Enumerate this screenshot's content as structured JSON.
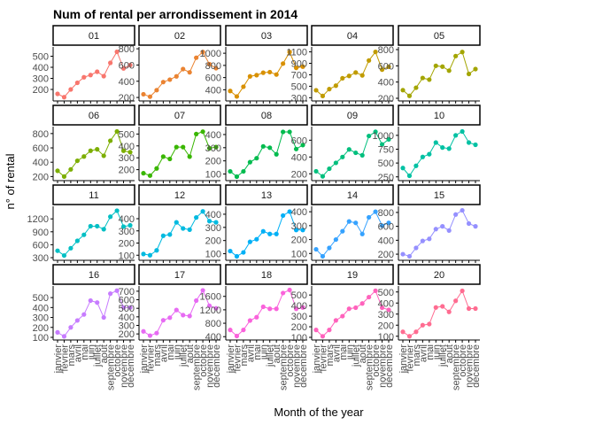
{
  "chart_data": {
    "type": "line",
    "title": "Num of rental per arrondissement in 2014",
    "xlabel": "Month of the year",
    "ylabel": "n° of rental",
    "categories": [
      "janvier",
      "février",
      "mars",
      "avril",
      "mai",
      "juin",
      "juillet",
      "août",
      "septembre",
      "octobre",
      "novembre",
      "décembre"
    ],
    "facets": [
      {
        "name": "01",
        "color": "#F8766D",
        "values": [
          160,
          130,
          200,
          260,
          310,
          330,
          360,
          320,
          440,
          540,
          390,
          420
        ],
        "ylim": [
          120,
          560
        ],
        "yticks": [
          200,
          300,
          400,
          500
        ]
      },
      {
        "name": "02",
        "color": "#EA8331",
        "values": [
          240,
          210,
          290,
          390,
          420,
          460,
          550,
          510,
          690,
          760,
          610,
          560
        ],
        "ylim": [
          190,
          790
        ],
        "yticks": [
          200,
          400,
          600,
          800
        ]
      },
      {
        "name": "03",
        "color": "#D89000",
        "values": [
          380,
          290,
          450,
          620,
          640,
          680,
          690,
          650,
          830,
          1020,
          760,
          780
        ],
        "ylim": [
          260,
          1060
        ],
        "yticks": [
          200,
          400,
          600,
          800,
          1000
        ]
      },
      {
        "name": "04",
        "color": "#C09B00",
        "values": [
          430,
          330,
          450,
          510,
          640,
          680,
          740,
          690,
          950,
          1100,
          790,
          840
        ],
        "ylim": [
          290,
          1140
        ],
        "yticks": [
          300,
          500,
          700,
          900,
          1100
        ]
      },
      {
        "name": "05",
        "color": "#A3A500",
        "values": [
          300,
          230,
          330,
          450,
          430,
          600,
          590,
          540,
          720,
          770,
          500,
          560
        ],
        "ylim": [
          200,
          800
        ],
        "yticks": [
          200,
          400,
          600,
          800
        ]
      },
      {
        "name": "06",
        "color": "#7CAE00",
        "values": [
          280,
          200,
          300,
          420,
          480,
          560,
          580,
          490,
          700,
          830,
          560,
          540
        ],
        "ylim": [
          180,
          860
        ],
        "yticks": [
          200,
          400,
          600,
          800
        ]
      },
      {
        "name": "07",
        "color": "#39B600",
        "values": [
          170,
          150,
          210,
          310,
          290,
          390,
          390,
          310,
          500,
          520,
          380,
          390
        ],
        "ylim": [
          130,
          540
        ],
        "yticks": [
          200,
          300,
          400,
          500
        ]
      },
      {
        "name": "08",
        "color": "#00BB4E",
        "values": [
          120,
          80,
          120,
          190,
          220,
          310,
          300,
          250,
          420,
          420,
          290,
          320
        ],
        "ylim": [
          70,
          440
        ],
        "yticks": [
          100,
          200,
          300,
          400
        ]
      },
      {
        "name": "09",
        "color": "#00BF7D",
        "values": [
          230,
          170,
          260,
          330,
          400,
          490,
          450,
          420,
          650,
          700,
          550,
          610
        ],
        "ylim": [
          150,
          730
        ],
        "yticks": [
          200,
          400,
          600
        ]
      },
      {
        "name": "10",
        "color": "#00C1A3",
        "values": [
          410,
          270,
          450,
          610,
          660,
          870,
          780,
          760,
          1000,
          1070,
          870,
          830
        ],
        "ylim": [
          230,
          1110
        ],
        "yticks": [
          250,
          500,
          750,
          1000
        ]
      },
      {
        "name": "11",
        "color": "#00BFC4",
        "values": [
          460,
          350,
          520,
          690,
          830,
          1030,
          1030,
          960,
          1250,
          1390,
          1020,
          1050
        ],
        "ylim": [
          300,
          1430
        ],
        "yticks": [
          300,
          600,
          900,
          1200
        ]
      },
      {
        "name": "12",
        "color": "#00BAE0",
        "values": [
          110,
          100,
          140,
          260,
          270,
          370,
          320,
          310,
          410,
          460,
          380,
          370
        ],
        "ylim": [
          80,
          480
        ],
        "yticks": [
          100,
          200,
          300,
          400
        ]
      },
      {
        "name": "13",
        "color": "#00B0F6",
        "values": [
          120,
          80,
          110,
          190,
          210,
          270,
          250,
          250,
          390,
          420,
          280,
          280
        ],
        "ylim": [
          70,
          440
        ],
        "yticks": [
          100,
          200,
          300,
          400
        ]
      },
      {
        "name": "14",
        "color": "#35A2FF",
        "values": [
          130,
          80,
          140,
          200,
          260,
          330,
          320,
          240,
          360,
          400,
          300,
          320
        ],
        "ylim": [
          70,
          420
        ],
        "yticks": [
          100,
          200,
          300,
          400
        ]
      },
      {
        "name": "15",
        "color": "#9590FF",
        "values": [
          200,
          170,
          290,
          390,
          420,
          560,
          600,
          540,
          770,
          830,
          640,
          600
        ],
        "ylim": [
          150,
          850
        ],
        "yticks": [
          200,
          400,
          600,
          800
        ]
      },
      {
        "name": "16",
        "color": "#C77CFF",
        "values": [
          150,
          110,
          200,
          270,
          330,
          470,
          450,
          300,
          540,
          570,
          400,
          400
        ],
        "ylim": [
          100,
          590
        ],
        "yticks": [
          100,
          200,
          300,
          400,
          500
        ]
      },
      {
        "name": "17",
        "color": "#E76BF3",
        "values": [
          230,
          180,
          210,
          360,
          390,
          480,
          420,
          410,
          590,
          710,
          530,
          500
        ],
        "ylim": [
          160,
          730
        ],
        "yticks": [
          200,
          300,
          400,
          500,
          600,
          700
        ]
      },
      {
        "name": "18",
        "color": "#FA62DB",
        "values": [
          600,
          420,
          600,
          880,
          980,
          1290,
          1230,
          1230,
          1700,
          1790,
          1230,
          1270
        ],
        "ylim": [
          380,
          1830
        ],
        "yticks": [
          400,
          800,
          1200,
          1600
        ]
      },
      {
        "name": "19",
        "color": "#FF62BC",
        "values": [
          170,
          110,
          170,
          260,
          300,
          370,
          380,
          420,
          480,
          540,
          380,
          360
        ],
        "ylim": [
          100,
          560
        ],
        "yticks": [
          100,
          200,
          300,
          400,
          500
        ]
      },
      {
        "name": "20",
        "color": "#FF6C91",
        "values": [
          140,
          100,
          140,
          200,
          210,
          360,
          370,
          320,
          420,
          510,
          350,
          350
        ],
        "ylim": [
          90,
          530
        ],
        "yticks": [
          100,
          200,
          300,
          400,
          500
        ]
      }
    ]
  }
}
